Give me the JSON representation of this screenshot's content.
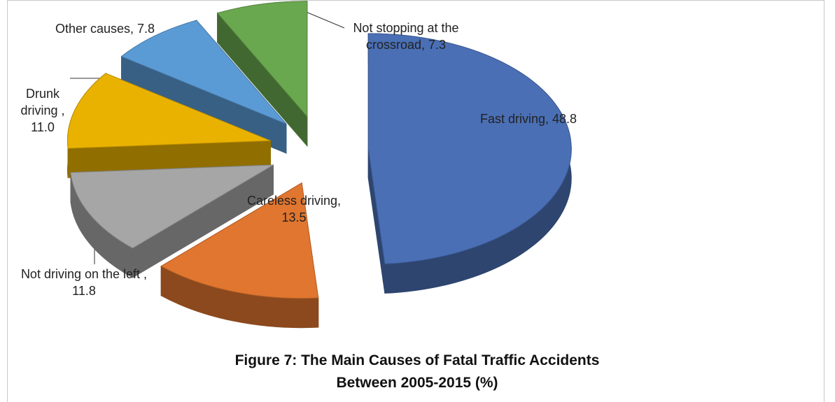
{
  "chart_data": {
    "type": "pie",
    "title": "Figure 7: The Main Causes of Fatal Traffic Accidents Between 2005-2015 (%)",
    "values": [
      48.8,
      13.5,
      11.8,
      11.0,
      7.8,
      7.3
    ],
    "value_labels": [
      "Fast driving, 48.8",
      "Careless driving, 13.5",
      "Not driving on the left , 11.8",
      "Drunk driving , 11.0",
      "Other causes, 7.8",
      "Not stopping at the crossroad, 7.3"
    ],
    "colors": [
      "#4a6fb5",
      "#e0762f",
      "#a6a6a6",
      "#eab200",
      "#5b9bd5",
      "#6aa84f"
    ]
  }
}
